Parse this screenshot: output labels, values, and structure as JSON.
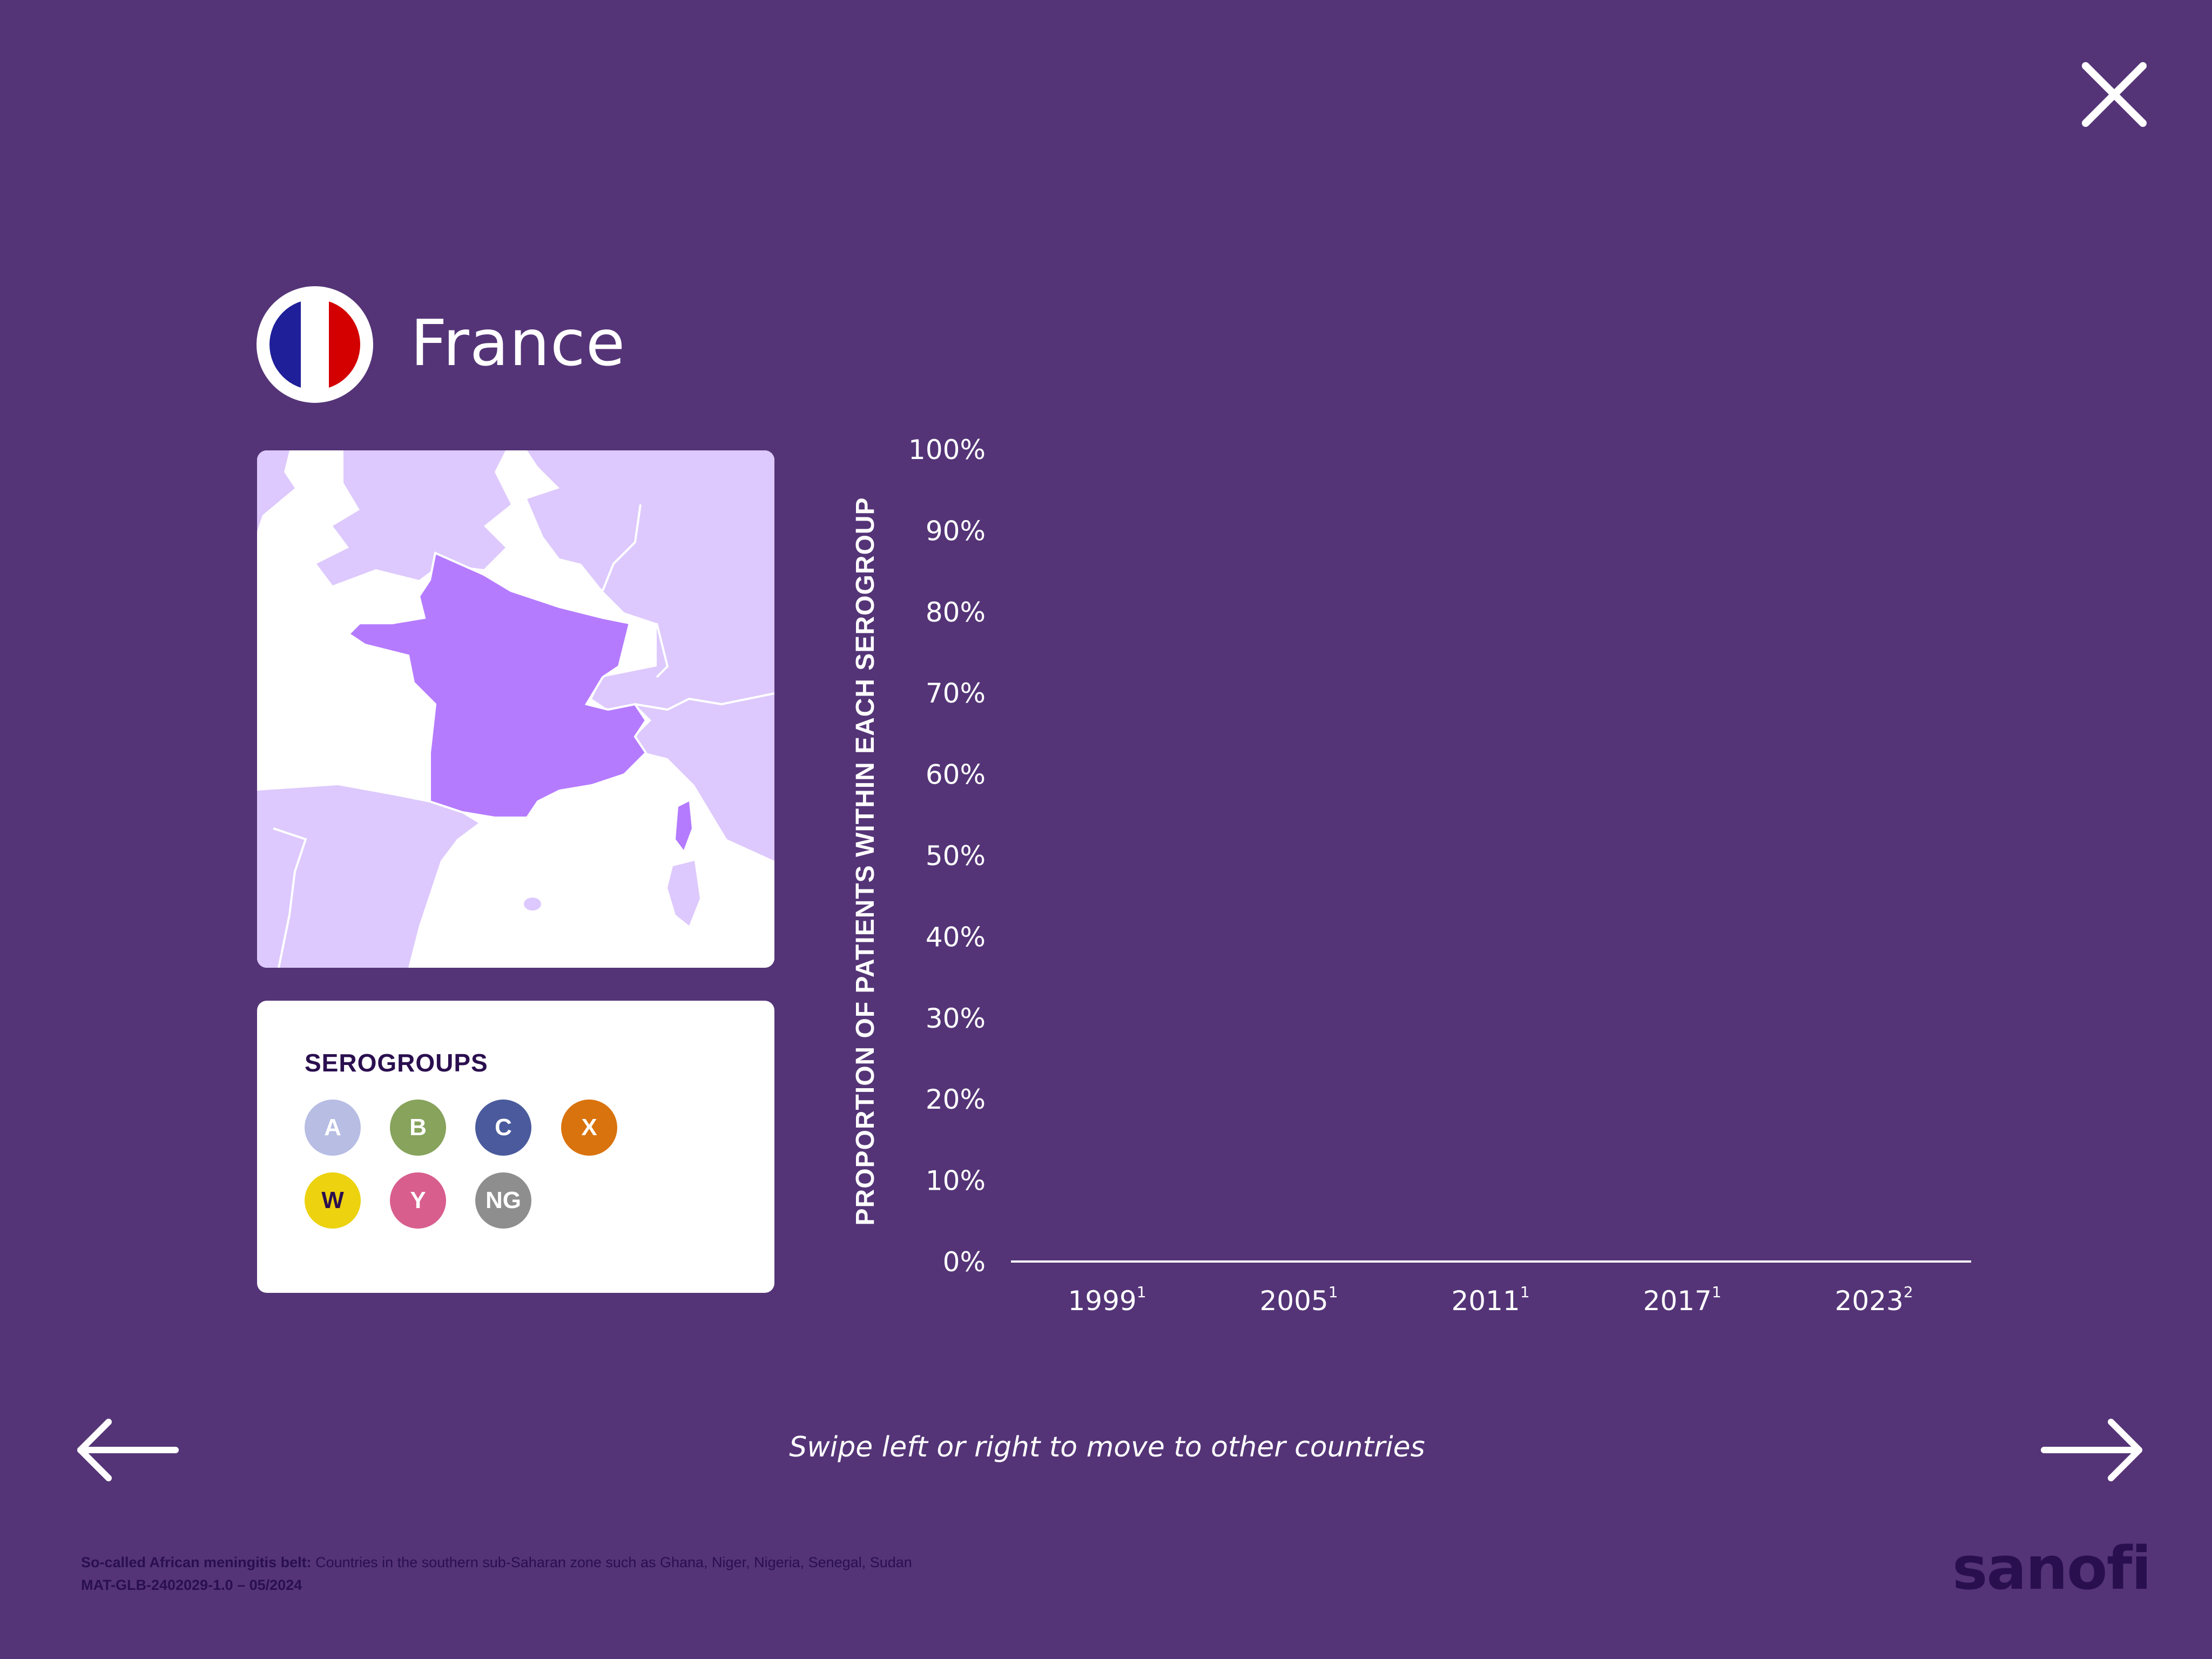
{
  "header": {
    "country": "France",
    "flag_colors": [
      "#1f1f9a",
      "#ffffff",
      "#d40000"
    ]
  },
  "icons": {
    "close": "close-icon",
    "prev": "arrow-left-icon",
    "next": "arrow-right-icon",
    "flag": "france-flag-icon"
  },
  "map": {
    "highlight_color": "#b57bff",
    "land_color": "#ddc9fd",
    "sea_color": "#ffffff"
  },
  "legend": {
    "title": "SEROGROUPS",
    "items": [
      {
        "label": "A",
        "color": "#b7bde3",
        "text_color": "#ffffff"
      },
      {
        "label": "B",
        "color": "#87a35c",
        "text_color": "#ffffff"
      },
      {
        "label": "C",
        "color": "#4a5a9c",
        "text_color": "#ffffff"
      },
      {
        "label": "X",
        "color": "#d9730d",
        "text_color": "#ffffff"
      },
      {
        "label": "W",
        "color": "#ecd20f",
        "text_color": "#2a0f4f"
      },
      {
        "label": "Y",
        "color": "#d85e8e",
        "text_color": "#ffffff"
      },
      {
        "label": "NG",
        "color": "#8e8e8e",
        "text_color": "#ffffff"
      }
    ]
  },
  "chart_data": {
    "type": "bar",
    "ylabel": "PROPORTION OF  PATIENTS WITHIN EACH  SEROGROUP",
    "ylim": [
      0,
      100
    ],
    "yticks": [
      "0%",
      "10%",
      "20%",
      "30%",
      "40%",
      "50%",
      "60%",
      "70%",
      "80%",
      "90%",
      "100%"
    ],
    "categories": [
      {
        "year": "1999",
        "ref": "1"
      },
      {
        "year": "2005",
        "ref": "1"
      },
      {
        "year": "2011",
        "ref": "1"
      },
      {
        "year": "2017",
        "ref": "1"
      },
      {
        "year": "2023",
        "ref": "2"
      }
    ],
    "series": []
  },
  "navigation": {
    "hint": "Swipe left or right to move to other countries"
  },
  "footer": {
    "note_bold": "So-called African meningitis belt:",
    "note_text": " Countries in the southern sub-Saharan zone such as Ghana, Niger, Nigeria, Senegal, Sudan",
    "code": "MAT-GLB-2402029-1.0 – 05/2024",
    "logo": "sanofi"
  }
}
